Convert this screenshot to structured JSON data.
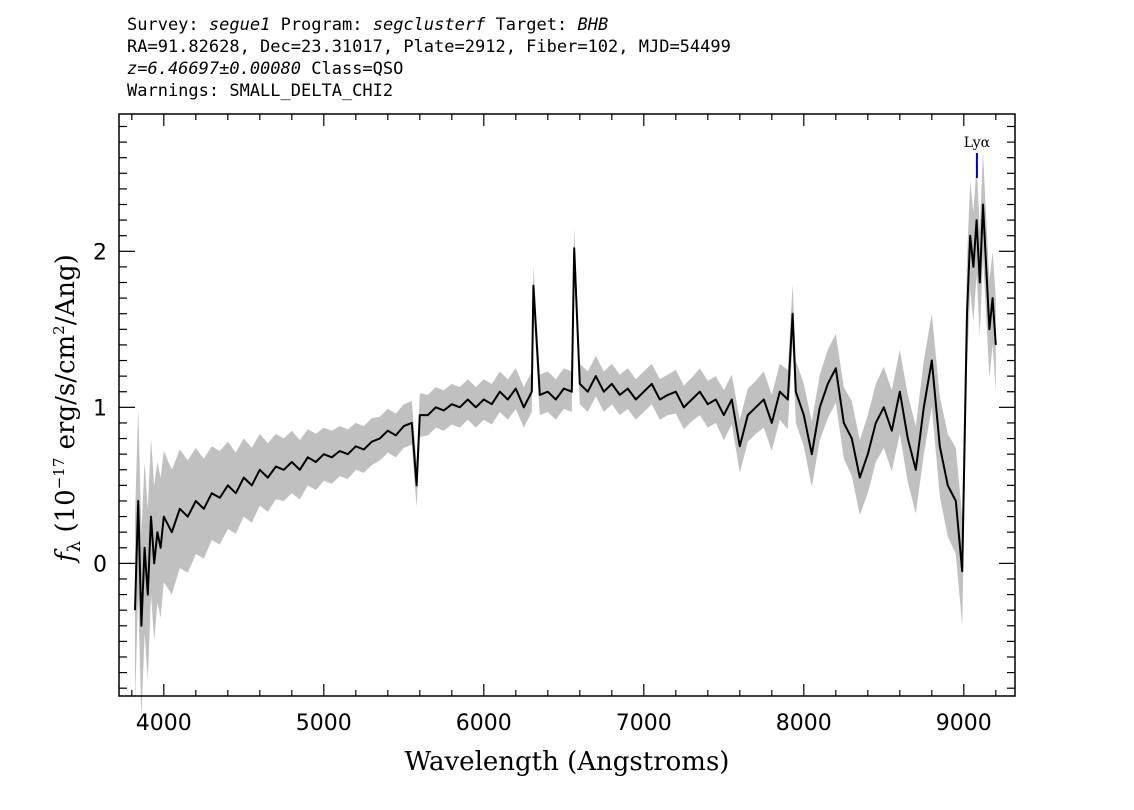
{
  "header": {
    "survey_label": "Survey:",
    "survey": "segue1",
    "program_label": "Program:",
    "program": "segclusterf",
    "target_label": "Target:",
    "target": "BHB",
    "line2": "RA=91.82628, Dec=23.31017, Plate=2912, Fiber=102, MJD=54499",
    "redshift": "z=6.46697±0.00080",
    "class_text": "Class=QSO",
    "warnings": "Warnings: SMALL_DELTA_CHI2"
  },
  "colors": {
    "flux": "#000000",
    "error_band": "#c0c0c0",
    "line_marker": "#0000cc",
    "frame": "#000000"
  },
  "chart_data": {
    "type": "line",
    "title": "",
    "xlabel": "Wavelength (Angstroms)",
    "ylabel_main": "f",
    "ylabel_sub": "λ",
    "ylabel_rest": " (10",
    "ylabel_exp": "−17",
    "ylabel_rest2": " erg/s/cm",
    "ylabel_exp2": "2",
    "ylabel_rest3": "/Ang)",
    "xlim": [
      3720,
      9320
    ],
    "ylim": [
      -0.85,
      2.88
    ],
    "x_ticks": [
      4000,
      5000,
      6000,
      7000,
      8000,
      9000
    ],
    "x_tick_labels": [
      "4000",
      "5000",
      "6000",
      "7000",
      "8000",
      "9000"
    ],
    "x_minor_step": 200,
    "y_ticks": [
      0,
      1,
      2
    ],
    "y_tick_labels": [
      "0",
      "1",
      "2"
    ],
    "y_minor_step": 0.1,
    "grid": false,
    "legend": "none",
    "line_marker": {
      "label": "Lyα",
      "x": 9082,
      "y_top": 2.63,
      "y_bottom": 2.47
    },
    "series": [
      {
        "name": "",
        "x": [
          3820,
          3840,
          3860,
          3880,
          3900,
          3920,
          3940,
          3960,
          3980,
          4000,
          4050,
          4100,
          4150,
          4200,
          4250,
          4300,
          4350,
          4400,
          4450,
          4500,
          4550,
          4600,
          4650,
          4700,
          4750,
          4800,
          4850,
          4900,
          4950,
          5000,
          5050,
          5100,
          5150,
          5200,
          5250,
          5300,
          5350,
          5400,
          5450,
          5500,
          5550,
          5580,
          5600,
          5650,
          5700,
          5750,
          5800,
          5850,
          5900,
          5950,
          6000,
          6050,
          6100,
          6150,
          6200,
          6250,
          6300,
          6310,
          6350,
          6400,
          6450,
          6500,
          6550,
          6565,
          6600,
          6650,
          6700,
          6750,
          6800,
          6850,
          6900,
          6950,
          7000,
          7050,
          7100,
          7150,
          7200,
          7250,
          7300,
          7350,
          7400,
          7450,
          7500,
          7550,
          7600,
          7650,
          7700,
          7750,
          7800,
          7850,
          7900,
          7930,
          7950,
          8000,
          8050,
          8100,
          8150,
          8200,
          8250,
          8300,
          8350,
          8400,
          8450,
          8500,
          8550,
          8600,
          8650,
          8700,
          8750,
          8800,
          8850,
          8900,
          8950,
          8990,
          9020,
          9040,
          9060,
          9080,
          9100,
          9120,
          9140,
          9160,
          9180,
          9200
        ],
        "y": [
          -0.3,
          0.4,
          -0.4,
          0.1,
          -0.2,
          0.3,
          0.0,
          0.2,
          0.1,
          0.3,
          0.2,
          0.35,
          0.3,
          0.4,
          0.35,
          0.45,
          0.42,
          0.5,
          0.45,
          0.55,
          0.5,
          0.6,
          0.55,
          0.62,
          0.6,
          0.65,
          0.6,
          0.68,
          0.65,
          0.7,
          0.68,
          0.72,
          0.7,
          0.75,
          0.73,
          0.78,
          0.8,
          0.85,
          0.82,
          0.88,
          0.9,
          0.5,
          0.95,
          0.95,
          1.0,
          0.98,
          1.02,
          1.0,
          1.05,
          1.0,
          1.05,
          1.02,
          1.1,
          1.05,
          1.12,
          1.0,
          1.1,
          1.78,
          1.08,
          1.1,
          1.05,
          1.12,
          1.1,
          2.02,
          1.15,
          1.1,
          1.2,
          1.1,
          1.15,
          1.08,
          1.12,
          1.05,
          1.1,
          1.15,
          1.05,
          1.08,
          1.1,
          1.0,
          1.05,
          1.1,
          1.02,
          1.05,
          0.95,
          1.05,
          0.75,
          0.95,
          1.0,
          1.05,
          0.9,
          1.1,
          1.05,
          1.6,
          1.1,
          0.95,
          0.7,
          1.0,
          1.15,
          1.25,
          0.9,
          0.8,
          0.55,
          0.7,
          0.9,
          1.0,
          0.85,
          1.1,
          0.8,
          0.6,
          1.0,
          1.3,
          0.75,
          0.5,
          0.4,
          -0.05,
          1.6,
          2.1,
          1.9,
          2.2,
          1.8,
          2.3,
          1.9,
          1.5,
          1.7,
          1.4
        ],
        "err": [
          0.6,
          0.6,
          0.6,
          0.55,
          0.55,
          0.5,
          0.5,
          0.45,
          0.45,
          0.42,
          0.4,
          0.38,
          0.36,
          0.34,
          0.32,
          0.3,
          0.3,
          0.28,
          0.26,
          0.25,
          0.24,
          0.23,
          0.22,
          0.21,
          0.2,
          0.2,
          0.19,
          0.18,
          0.18,
          0.17,
          0.17,
          0.16,
          0.16,
          0.15,
          0.15,
          0.15,
          0.14,
          0.14,
          0.14,
          0.14,
          0.14,
          0.14,
          0.14,
          0.13,
          0.13,
          0.13,
          0.13,
          0.13,
          0.13,
          0.13,
          0.13,
          0.13,
          0.13,
          0.13,
          0.13,
          0.13,
          0.13,
          0.13,
          0.13,
          0.13,
          0.13,
          0.13,
          0.13,
          0.13,
          0.13,
          0.13,
          0.13,
          0.13,
          0.13,
          0.13,
          0.13,
          0.13,
          0.13,
          0.13,
          0.13,
          0.13,
          0.14,
          0.14,
          0.14,
          0.15,
          0.15,
          0.15,
          0.16,
          0.16,
          0.17,
          0.17,
          0.17,
          0.18,
          0.18,
          0.18,
          0.19,
          0.19,
          0.2,
          0.2,
          0.21,
          0.21,
          0.22,
          0.22,
          0.23,
          0.24,
          0.24,
          0.25,
          0.25,
          0.26,
          0.26,
          0.27,
          0.28,
          0.28,
          0.3,
          0.3,
          0.32,
          0.33,
          0.34,
          0.35,
          0.35,
          0.35,
          0.35,
          0.35,
          0.34,
          0.33,
          0.32,
          0.31,
          0.3,
          0.3
        ]
      }
    ]
  }
}
